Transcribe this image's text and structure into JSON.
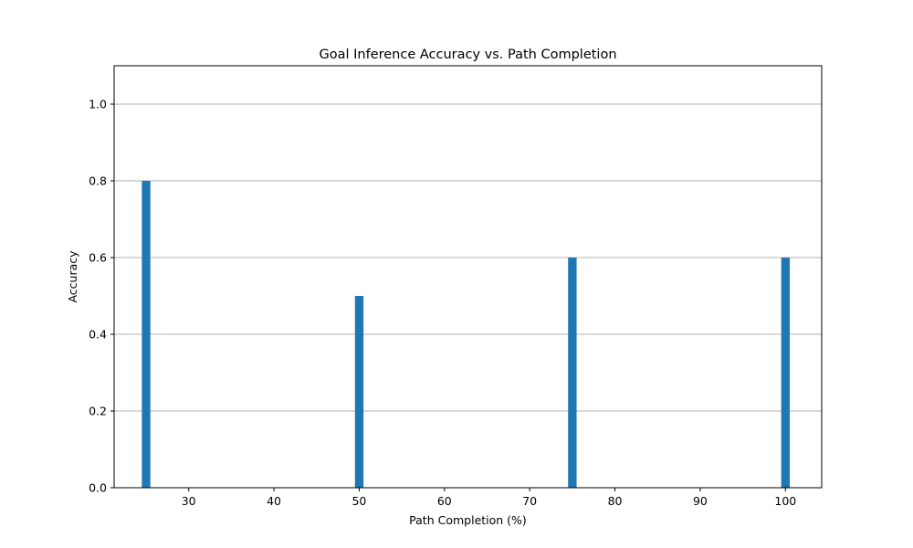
{
  "chart_data": {
    "type": "bar",
    "title": "Goal Inference Accuracy vs. Path Completion",
    "xlabel": "Path Completion (%)",
    "ylabel": "Accuracy",
    "x": [
      25,
      50,
      75,
      100
    ],
    "values": [
      0.8,
      0.5,
      0.6,
      0.6
    ],
    "bar_width": 1.0,
    "xlim": [
      21.25,
      104.25
    ],
    "ylim": [
      0,
      1.1
    ],
    "xticks": [
      30,
      40,
      50,
      60,
      70,
      80,
      90,
      100
    ],
    "yticks": [
      0.0,
      0.2,
      0.4,
      0.6,
      0.8,
      1.0
    ],
    "xtick_labels": [
      "30",
      "40",
      "50",
      "60",
      "70",
      "80",
      "90",
      "100"
    ],
    "ytick_labels": [
      "0.0",
      "0.2",
      "0.4",
      "0.6",
      "0.8",
      "1.0"
    ],
    "grid": "y",
    "bar_color": "#1f77b4",
    "grid_color": "#b0b0b0"
  }
}
